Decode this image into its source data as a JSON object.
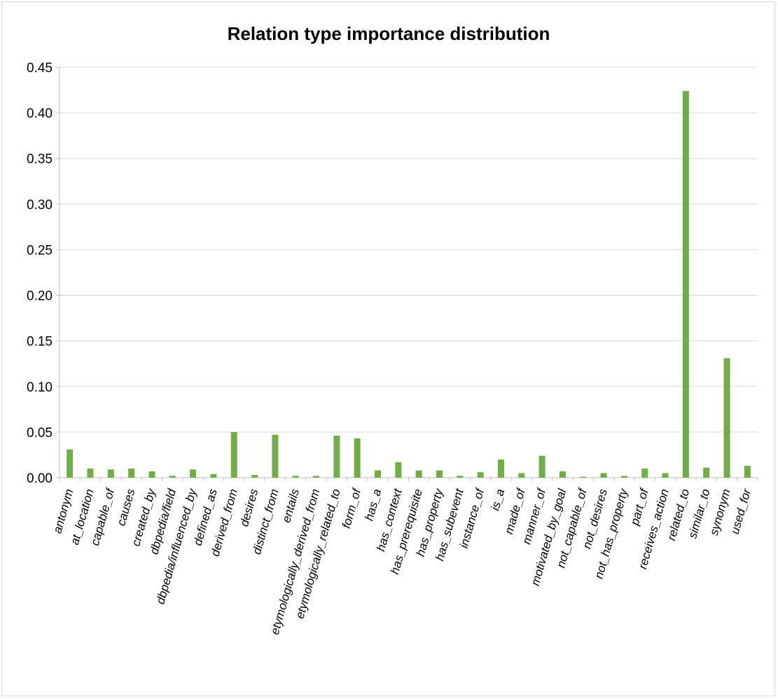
{
  "chart_data": {
    "type": "bar",
    "title": "Relation type importance distribution",
    "xlabel": "",
    "ylabel": "",
    "ylim": [
      0,
      0.45
    ],
    "yticks": [
      0.0,
      0.05,
      0.1,
      0.15,
      0.2,
      0.25,
      0.3,
      0.35,
      0.4,
      0.45
    ],
    "ytick_labels": [
      "0.00",
      "0.05",
      "0.10",
      "0.15",
      "0.20",
      "0.25",
      "0.30",
      "0.35",
      "0.40",
      "0.45"
    ],
    "grid": true,
    "bar_color": "#70ad47",
    "categories": [
      "antonym",
      "at_location",
      "capable_of",
      "causes",
      "created_by",
      "dbpedia/field",
      "dbpedia/influenced_by",
      "defined_as",
      "derived_from",
      "desires",
      "distinct_from",
      "entails",
      "etymologically_derived_from",
      "etymologically_related_to",
      "form_of",
      "has_a",
      "has_context",
      "has_prerequisite",
      "has_property",
      "has_subevent",
      "instance_of",
      "is_a",
      "made_of",
      "manner_of",
      "motivated_by_goal",
      "not_capable_of",
      "not_desires",
      "not_has_property",
      "part_of",
      "receives_action",
      "related_to",
      "similar_to",
      "synonym",
      "used_for"
    ],
    "values": [
      0.031,
      0.01,
      0.009,
      0.01,
      0.007,
      0.002,
      0.009,
      0.004,
      0.05,
      0.003,
      0.047,
      0.002,
      0.002,
      0.046,
      0.043,
      0.008,
      0.017,
      0.008,
      0.008,
      0.002,
      0.006,
      0.02,
      0.005,
      0.024,
      0.007,
      0.001,
      0.005,
      0.002,
      0.01,
      0.005,
      0.424,
      0.011,
      0.131,
      0.013
    ]
  }
}
